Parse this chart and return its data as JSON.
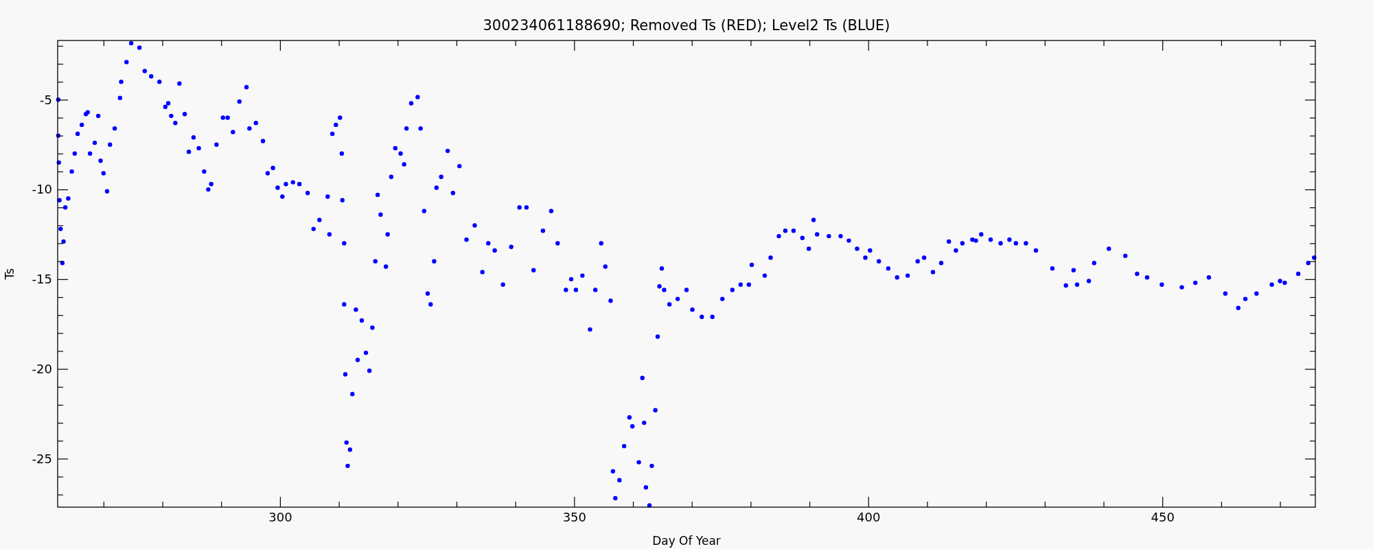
{
  "chart_data": {
    "type": "scatter",
    "title": "300234061188690; Removed Ts (RED); Level2 Ts (BLUE)",
    "xlabel": "Day Of Year",
    "ylabel": "Ts",
    "marker": "circle",
    "xlim": [
      262.2,
      476
    ],
    "ylim": [
      -27.7,
      -1.7
    ],
    "xticks": [
      {
        "value": 270,
        "label": null
      },
      {
        "value": 280,
        "label": null
      },
      {
        "value": 290,
        "label": null
      },
      300,
      {
        "value": 310,
        "label": null
      },
      {
        "value": 320,
        "label": null
      },
      {
        "value": 330,
        "label": null
      },
      {
        "value": 340,
        "label": null
      },
      350,
      {
        "value": 360,
        "label": null
      },
      {
        "value": 370,
        "label": null
      },
      {
        "value": 380,
        "label": null
      },
      {
        "value": 390,
        "label": null
      },
      400,
      {
        "value": 410,
        "label": null
      },
      {
        "value": 420,
        "label": null
      },
      {
        "value": 430,
        "label": null
      },
      {
        "value": 440,
        "label": null
      },
      450,
      {
        "value": 460,
        "label": null
      },
      {
        "value": 470,
        "label": null
      }
    ],
    "yticks": [
      {
        "value": -27,
        "label": null
      },
      {
        "value": -26,
        "label": null
      },
      -25,
      {
        "value": -24,
        "label": null
      },
      {
        "value": -23,
        "label": null
      },
      {
        "value": -22,
        "label": null
      },
      {
        "value": -21,
        "label": null
      },
      -20,
      {
        "value": -19,
        "label": null
      },
      {
        "value": -18,
        "label": null
      },
      {
        "value": -17,
        "label": null
      },
      {
        "value": -16,
        "label": null
      },
      -15,
      {
        "value": -14,
        "label": null
      },
      {
        "value": -13,
        "label": null
      },
      {
        "value": -12,
        "label": null
      },
      {
        "value": -11,
        "label": null
      },
      -10,
      {
        "value": -9,
        "label": null
      },
      {
        "value": -8,
        "label": null
      },
      {
        "value": -7,
        "label": null
      },
      {
        "value": -6,
        "label": null
      },
      -5,
      {
        "value": -4,
        "label": null
      },
      {
        "value": -3,
        "label": null
      },
      {
        "value": -2,
        "label": null
      }
    ],
    "series": [
      {
        "color": "#0000ff",
        "x": [
          262.3,
          262.3,
          262.4,
          262.5,
          262.7,
          263.0,
          263.2,
          263.5,
          264.0,
          264.6,
          265.1,
          265.6,
          266.3,
          267.0,
          267.3,
          267.7,
          268.5,
          269.1,
          269.5,
          270.0,
          270.6,
          271.1,
          271.9,
          272.8,
          273.0,
          273.9,
          274.7,
          276.1,
          277.0,
          278.1,
          279.5,
          280.5,
          281.0,
          281.5,
          282.2,
          282.9,
          283.8,
          284.5,
          285.3,
          286.2,
          287.1,
          287.8,
          288.3,
          289.2,
          290.3,
          291.1,
          292.0,
          293.1,
          294.3,
          294.8,
          295.9,
          297.1,
          297.9,
          298.8,
          299.6,
          300.4,
          301.0,
          302.2,
          303.3,
          304.7,
          305.7,
          306.7,
          308.1,
          308.4,
          308.9,
          309.5,
          310.2,
          310.5,
          310.6,
          310.9,
          310.9,
          311.1,
          311.3,
          311.5,
          311.9,
          312.3,
          312.9,
          313.2,
          313.9,
          314.6,
          315.2,
          315.7,
          316.2,
          316.6,
          317.1,
          318.0,
          318.3,
          318.9,
          319.6,
          320.5,
          321.1,
          321.5,
          322.3,
          323.4,
          323.9,
          324.5,
          325.1,
          325.6,
          326.2,
          326.6,
          327.4,
          328.5,
          329.4,
          330.5,
          331.7,
          333.1,
          334.4,
          335.4,
          336.5,
          337.9,
          339.3,
          340.7,
          341.9,
          343.1,
          344.7,
          346.1,
          347.2,
          348.6,
          349.5,
          350.3,
          351.4,
          352.7,
          353.6,
          354.6,
          355.3,
          356.2,
          356.6,
          357.0,
          357.7,
          358.5,
          359.4,
          359.9,
          361.0,
          361.6,
          361.9,
          362.2,
          362.8,
          363.2,
          363.8,
          364.2,
          364.5,
          364.9,
          365.3,
          366.2,
          367.6,
          369.1,
          370.1,
          371.7,
          373.5,
          375.2,
          376.9,
          378.3,
          379.7,
          380.2,
          382.4,
          383.4,
          384.8,
          385.9,
          387.3,
          388.8,
          389.9,
          390.7,
          391.3,
          393.3,
          395.3,
          396.7,
          398.1,
          399.5,
          400.3,
          401.8,
          403.4,
          404.9,
          406.7,
          408.4,
          409.5,
          411.0,
          412.4,
          413.7,
          414.9,
          416.0,
          417.7,
          418.3,
          419.2,
          420.8,
          422.5,
          424.0,
          425.1,
          426.8,
          428.5,
          431.3,
          433.6,
          434.9,
          435.5,
          437.5,
          438.4,
          440.9,
          443.7,
          445.7,
          447.4,
          449.9,
          453.3,
          455.6,
          457.9,
          460.7,
          462.9,
          464.1,
          466.0,
          468.6,
          470.0,
          470.8,
          473.1,
          474.8,
          475.8
        ],
        "values": [
          -5.0,
          -7.0,
          -8.5,
          -10.6,
          -12.2,
          -14.1,
          -12.9,
          -11.0,
          -10.5,
          -9.0,
          -8.0,
          -6.9,
          -6.4,
          -5.8,
          -5.7,
          -8.0,
          -7.4,
          -5.9,
          -8.4,
          -9.1,
          -10.1,
          -7.5,
          -6.6,
          -4.9,
          -4.0,
          -2.9,
          -1.85,
          -2.1,
          -3.4,
          -3.7,
          -4.0,
          -5.4,
          -5.2,
          -5.9,
          -6.3,
          -4.1,
          -5.8,
          -7.9,
          -7.1,
          -7.7,
          -9.0,
          -10.0,
          -9.7,
          -7.5,
          -6.0,
          -6.0,
          -6.8,
          -5.1,
          -4.3,
          -6.6,
          -6.3,
          -7.3,
          -9.1,
          -8.8,
          -9.9,
          -10.4,
          -9.7,
          -9.6,
          -9.7,
          -10.2,
          -12.2,
          -11.7,
          -10.4,
          -12.5,
          -6.9,
          -6.4,
          -6.0,
          -8.0,
          -10.6,
          -13.0,
          -16.4,
          -20.3,
          -24.1,
          -25.4,
          -24.5,
          -21.4,
          -16.7,
          -19.5,
          -17.3,
          -19.1,
          -20.1,
          -17.7,
          -14.0,
          -10.3,
          -11.4,
          -14.3,
          -12.5,
          -9.3,
          -7.7,
          -8.0,
          -8.6,
          -6.6,
          -5.2,
          -4.85,
          -6.6,
          -11.2,
          -15.8,
          -16.4,
          -14.0,
          -9.9,
          -9.3,
          -7.85,
          -10.2,
          -8.7,
          -12.8,
          -12.0,
          -14.6,
          -13.0,
          -13.4,
          -15.3,
          -13.2,
          -11.0,
          -11.0,
          -14.5,
          -12.3,
          -11.2,
          -13.0,
          -15.6,
          -15.0,
          -15.6,
          -14.8,
          -17.8,
          -15.6,
          -13.0,
          -14.3,
          -16.2,
          -25.7,
          -27.2,
          -26.2,
          -24.3,
          -22.7,
          -23.2,
          -25.2,
          -20.5,
          -23.0,
          -26.6,
          -27.6,
          -25.4,
          -22.3,
          -18.2,
          -15.4,
          -14.4,
          -15.6,
          -16.4,
          -16.1,
          -15.6,
          -16.7,
          -17.1,
          -17.1,
          -16.1,
          -15.6,
          -15.3,
          -15.3,
          -14.2,
          -14.8,
          -13.8,
          -12.6,
          -12.3,
          -12.3,
          -12.7,
          -13.3,
          -11.7,
          -12.5,
          -12.6,
          -12.6,
          -12.85,
          -13.3,
          -13.8,
          -13.4,
          -14.0,
          -14.4,
          -14.9,
          -14.8,
          -14.0,
          -13.8,
          -14.6,
          -14.1,
          -12.9,
          -13.4,
          -13.0,
          -12.8,
          -12.85,
          -12.5,
          -12.8,
          -13.0,
          -12.8,
          -13.0,
          -13.0,
          -13.4,
          -14.4,
          -15.35,
          -14.5,
          -15.3,
          -15.1,
          -14.1,
          -13.3,
          -13.7,
          -14.7,
          -14.9,
          -15.3,
          -15.45,
          -15.2,
          -14.9,
          -15.8,
          -16.6,
          -16.1,
          -15.8,
          -15.3,
          -15.1,
          -15.2,
          -14.7,
          -14.1,
          -13.8
        ]
      }
    ]
  }
}
